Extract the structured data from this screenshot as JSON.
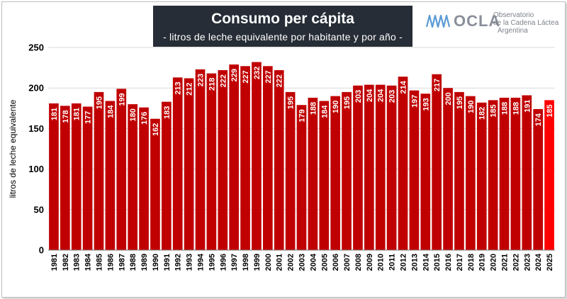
{
  "header": {
    "title": "Consumo per cápita",
    "subtitle": "- litros de leche equivalente por habitante y por año -"
  },
  "logo": {
    "wordmark": "OCLA",
    "line1": "Observatorio",
    "line2": "de la Cadena Láctea",
    "line3": "Argentina",
    "color": "#8a8f99",
    "mark_color": "#5b9bd5"
  },
  "colors": {
    "bar": "#c00000",
    "bar_highlight": "#ff0000",
    "grid": "#d9d9d9",
    "title_bg": "#262d36"
  },
  "chart_data": {
    "type": "bar",
    "title": "Consumo per cápita",
    "subtitle": "- litros de leche equivalente por habitante y por año -",
    "xlabel": "",
    "ylabel": "litros de leche equivalente",
    "ylim": [
      0,
      250
    ],
    "yticks": [
      0,
      50,
      100,
      150,
      200,
      250
    ],
    "grid": true,
    "categories": [
      "1981",
      "1982",
      "1983",
      "1984",
      "1985",
      "1986",
      "1987",
      "1988",
      "1989",
      "1990",
      "1991",
      "1992",
      "1993",
      "1994",
      "1995",
      "1996",
      "1997",
      "1998",
      "1999",
      "2000",
      "2001",
      "2002",
      "2003",
      "2004",
      "2005",
      "2006",
      "2007",
      "2008",
      "2009",
      "2010",
      "2011",
      "2012",
      "2013",
      "2014",
      "2015",
      "2016",
      "2017",
      "2018",
      "2019",
      "2020",
      "2021",
      "2022",
      "2023",
      "2024",
      "2025"
    ],
    "values": [
      181,
      178,
      181,
      177,
      195,
      184,
      199,
      180,
      176,
      162,
      183,
      213,
      212,
      223,
      218,
      222,
      229,
      227,
      232,
      227,
      222,
      195,
      179,
      188,
      184,
      190,
      195,
      203,
      204,
      204,
      203,
      214,
      197,
      193,
      217,
      200,
      195,
      190,
      182,
      185,
      188,
      188,
      191,
      174,
      185
    ],
    "highlight_last": true
  }
}
